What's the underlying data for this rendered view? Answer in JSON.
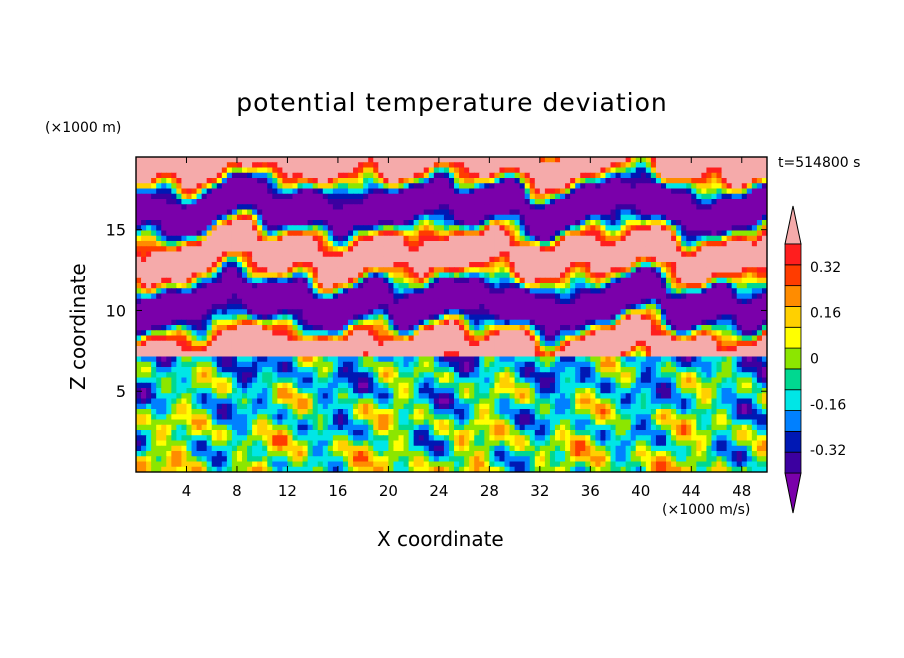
{
  "chart_data": {
    "type": "heatmap",
    "title": "potential temperature deviation",
    "xlabel": "X coordinate",
    "ylabel": "Z coordinate",
    "x_unit": "(×1000 m/s)",
    "y_unit": "(×1000 m)",
    "time_label": "t=514800 s",
    "xlim": [
      0,
      50
    ],
    "ylim": [
      0,
      19.5
    ],
    "x_ticks": [
      "4",
      "8",
      "12",
      "16",
      "20",
      "24",
      "28",
      "32",
      "36",
      "40",
      "44",
      "48"
    ],
    "y_ticks": [
      "5",
      "10",
      "15"
    ],
    "x_tick_values": [
      4,
      8,
      12,
      16,
      20,
      24,
      28,
      32,
      36,
      40,
      44,
      48
    ],
    "y_tick_values": [
      5,
      10,
      15
    ],
    "colorbar": {
      "tick_labels": [
        "0.32",
        "0.16",
        "0",
        "-0.16",
        "-0.32"
      ],
      "tick_values": [
        0.32,
        0.16,
        0,
        -0.16,
        -0.32
      ],
      "levels": [
        -0.4,
        -0.32,
        -0.24,
        -0.16,
        -0.08,
        -0.04,
        0.04,
        0.08,
        0.16,
        0.24,
        0.32,
        0.4
      ],
      "colors": [
        "#7a00aa",
        "#3c00a0",
        "#0018b4",
        "#0080ff",
        "#00e6e6",
        "#00d890",
        "#8ce600",
        "#ffff00",
        "#ffd000",
        "#ff8c00",
        "#ff3c00",
        "#ff1e1e",
        "#f5aaaa"
      ]
    },
    "field_description": "turbulent convective mixed layer below z≈7 (values mostly -0.32 to 0.32); above, alternating layered bands of strongly positive (>0.4) and strongly negative (<-0.4) deviation up to z≈19.5"
  }
}
